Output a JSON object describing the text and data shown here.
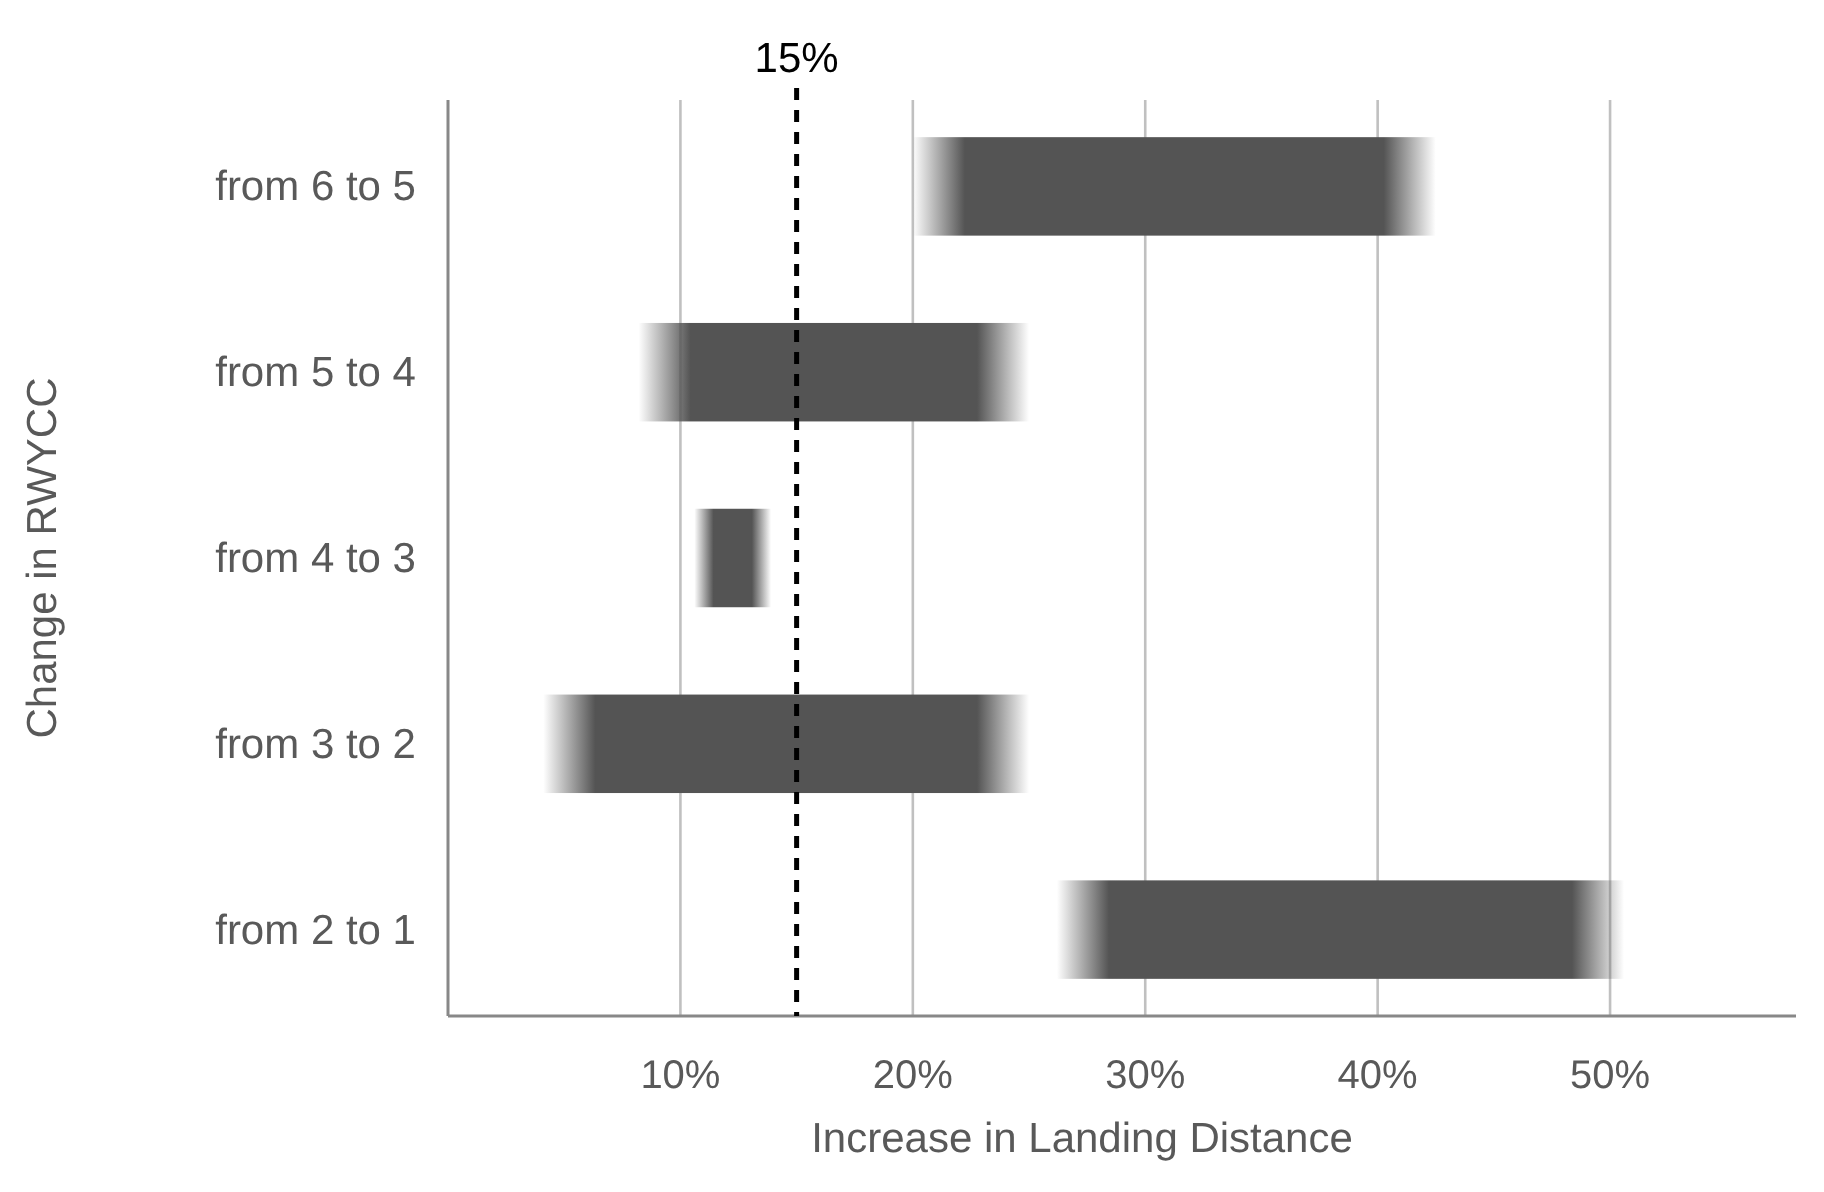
{
  "chart_data": {
    "type": "bar",
    "orientation": "horizontal",
    "xlabel": "Increase in Landing Distance",
    "ylabel": "Change in RWYCC",
    "categories": [
      "from 6 to 5",
      "from 5 to 4",
      "from 4 to 3",
      "from 3 to 2",
      "from 2 to 1"
    ],
    "base": [
      20,
      8.2,
      10.6,
      4.1,
      26.2
    ],
    "values": [
      22.5,
      16.8,
      3.3,
      20.9,
      24.4
    ],
    "color": "#545454",
    "xlim": [
      0,
      58
    ],
    "xticks": [
      {
        "value": 10,
        "label": "10%"
      },
      {
        "value": 20,
        "label": "20%"
      },
      {
        "value": 30,
        "label": "30%"
      },
      {
        "value": 40,
        "label": "40%"
      },
      {
        "value": 50,
        "label": "50%"
      }
    ],
    "grid": "x",
    "ref_lines": [
      {
        "axis": "x",
        "value": 15,
        "label": "15%",
        "color": "#000000",
        "line_style": "dashed"
      }
    ]
  }
}
